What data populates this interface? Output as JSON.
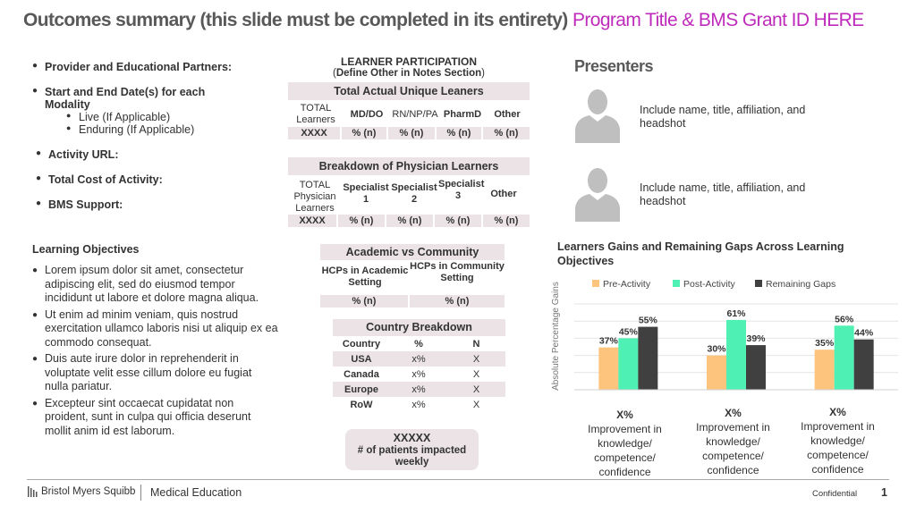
{
  "title": {
    "main": "Outcomes summary (this slide must be completed in its entirety)",
    "accent": "Program Title & BMS Grant ID HERE"
  },
  "left": {
    "bullets": [
      "Provider and Educational Partners:",
      "Start and End Date(s) for each Modality",
      "Activity URL:",
      "Total Cost of Activity:",
      "BMS Support:"
    ],
    "sub_bullets": [
      "Live (If Applicable)",
      "Enduring (If Applicable)"
    ],
    "learning_objectives_heading": "Learning Objectives",
    "learning_objectives": [
      "Lorem ipsum dolor sit amet, consectetur adipiscing elit, sed do eiusmod tempor incididunt ut labore et dolore magna aliqua.",
      "Ut enim ad minim veniam, quis nostrud exercitation ullamco laboris nisi ut aliquip ex ea commodo consequat.",
      "Duis aute irure dolor in reprehenderit in voluptate velit esse cillum dolore eu fugiat nulla pariatur.",
      "Excepteur sint occaecat cupidatat non proident, sunt in culpa qui officia deserunt mollit anim id est laborum."
    ]
  },
  "participation": {
    "heading": "LEARNER PARTICIPATION",
    "subheading_open": "(",
    "subheading_bold": "Define Other in Notes Section",
    "subheading_close": ")",
    "total_bar": "Total Actual Unique Leaners",
    "cols": [
      "TOTAL Learners",
      "MD/DO",
      "RN/NP/PA",
      "PharmD",
      "Other"
    ],
    "values": [
      "XXXX",
      "% (n)",
      "% (n)",
      "% (n)",
      "% (n)"
    ]
  },
  "physician": {
    "bar": "Breakdown of Physician Learners",
    "cols": [
      "TOTAL Physician Learners",
      "Specialist 1",
      "Specialist 2",
      "Specialist 3",
      "Other"
    ],
    "values": [
      "XXXX",
      "% (n)",
      "% (n)",
      "% (n)",
      "% (n)"
    ]
  },
  "academic": {
    "bar": "Academic vs Community",
    "cols": [
      "HCPs in Academic Setting",
      "HCPs in Community Setting"
    ],
    "values": [
      "% (n)",
      "% (n)"
    ]
  },
  "country": {
    "bar": "Country Breakdown",
    "headers": [
      "Country",
      "%",
      "N"
    ],
    "rows": [
      [
        "USA",
        "x%",
        "X"
      ],
      [
        "Canada",
        "x%",
        "X"
      ],
      [
        "Europe",
        "x%",
        "X"
      ],
      [
        "RoW",
        "x%",
        "X"
      ]
    ]
  },
  "impact": {
    "value": "XXXXX",
    "label": "# of patients impacted weekly"
  },
  "presenters": {
    "heading": "Presenters",
    "items": [
      "Include name, title, affiliation, and headshot",
      "Include name, title, affiliation, and headshot"
    ]
  },
  "chart_data": {
    "type": "bar",
    "title": "Learners Gains and Remaining Gaps Across Learning Objectives",
    "ylabel": "Absolute Percentage Gains",
    "xlabel": "",
    "legend_position": "top",
    "series": [
      {
        "name": "Pre-Activity",
        "values": [
          37,
          30,
          35
        ],
        "color": "#fdc47d"
      },
      {
        "name": "Post-Activity",
        "values": [
          45,
          61,
          56
        ],
        "color": "#4ef0b4"
      },
      {
        "name": "Remaining Gaps",
        "values": [
          55,
          39,
          44
        ],
        "color": "#404040"
      }
    ],
    "data_labels": [
      [
        "37%",
        "30%",
        "35%"
      ],
      [
        "45%",
        "61%",
        "56%"
      ],
      [
        "55%",
        "39%",
        "44%"
      ]
    ],
    "ylim": [
      0,
      75
    ],
    "grid": true
  },
  "improvements": [
    {
      "value": "X%",
      "text": "Improvement in knowledge/ competence/ confidence"
    },
    {
      "value": "X%",
      "text": "Improvement in knowledge/ competence/ confidence"
    },
    {
      "value": "X%",
      "text": "Improvement in knowledge/ competence/ confidence"
    }
  ],
  "footer": {
    "logo": "Bristol Myers Squibb",
    "division": "Medical Education",
    "confidential": "Confidential",
    "page": "1"
  }
}
